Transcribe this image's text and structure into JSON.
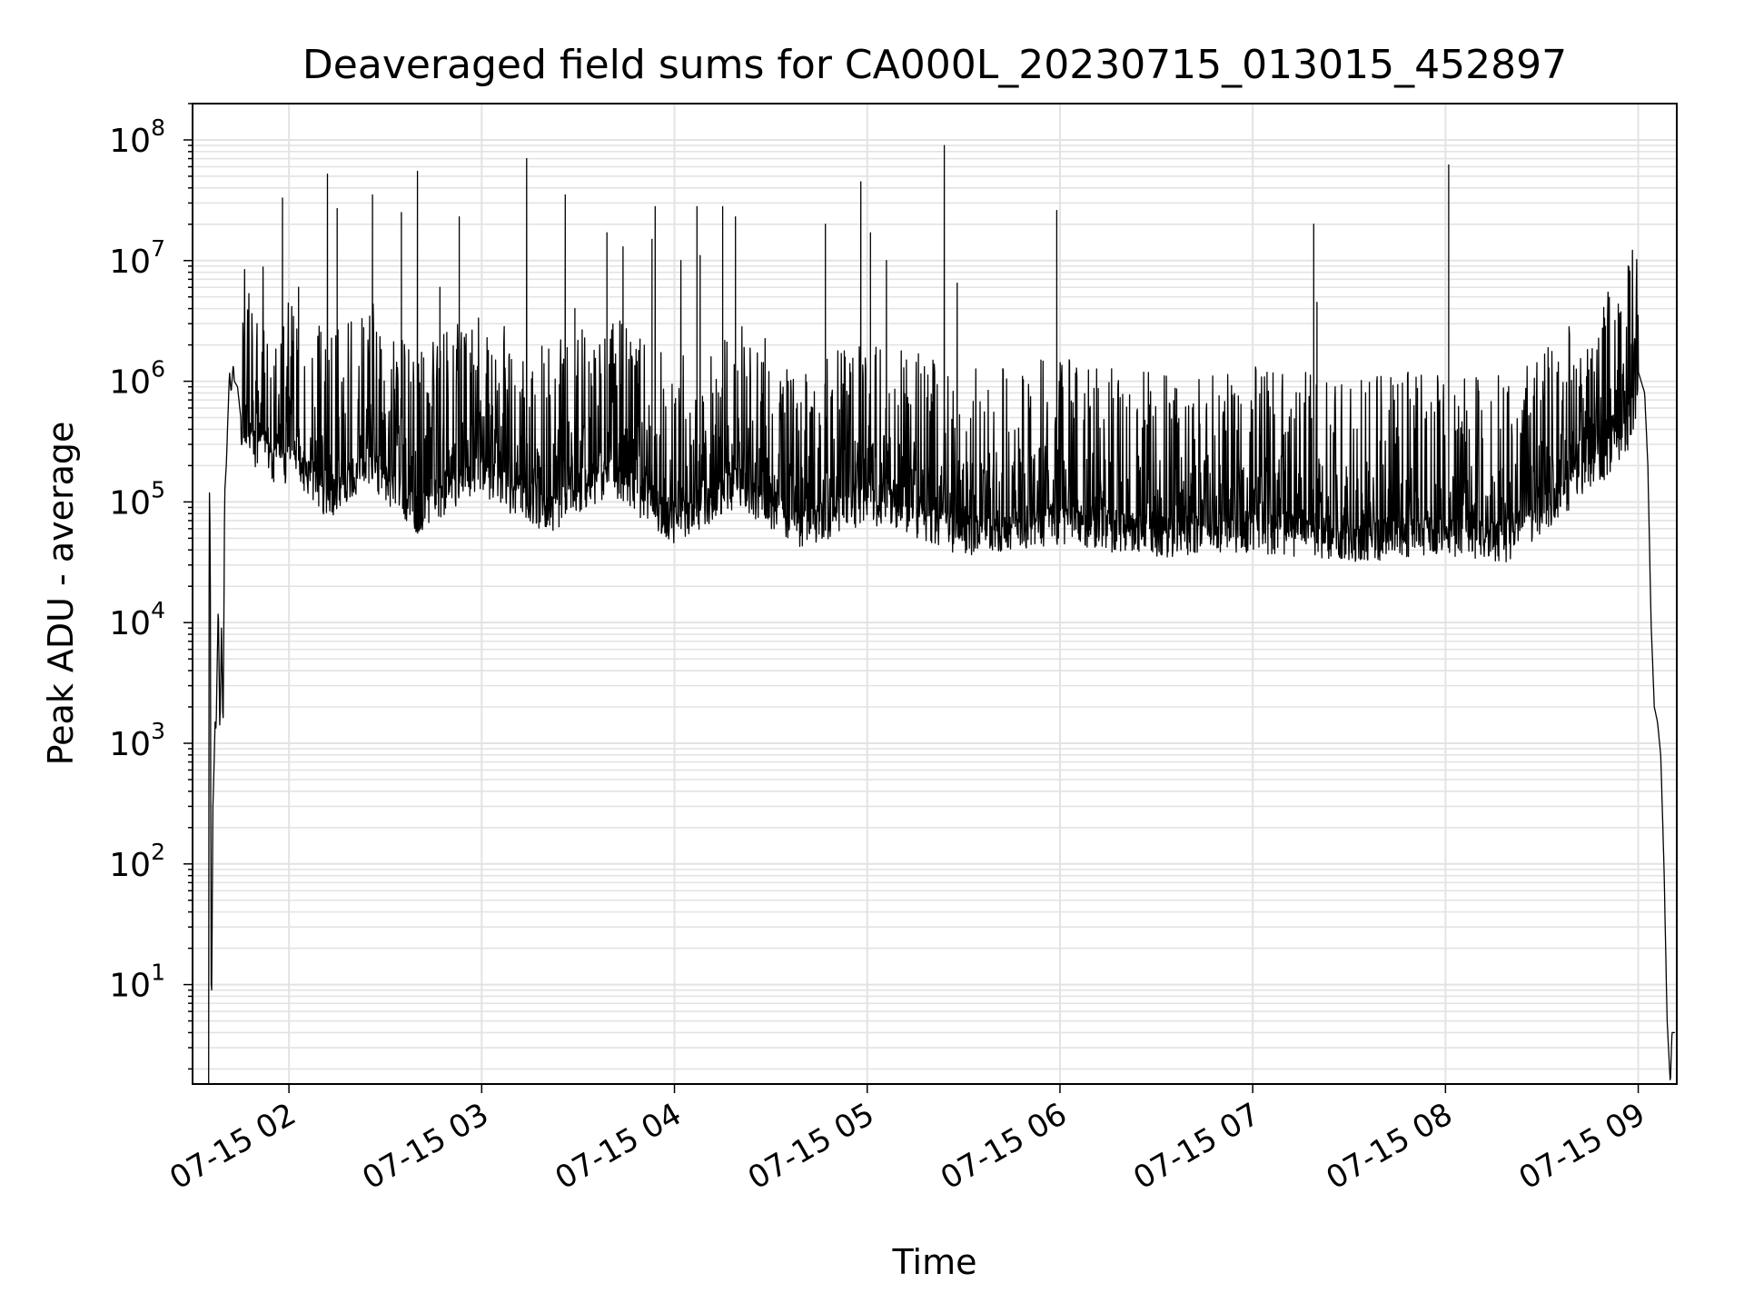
{
  "chart_data": {
    "type": "line",
    "title": "Deaveraged field sums for CA000L_20230715_013015_452897",
    "xlabel": "Time",
    "ylabel": "Peak ADU - average",
    "xlim": [
      "2023-07-15 01:30",
      "2023-07-15 09:12"
    ],
    "ylim": [
      1.5,
      200000000
    ],
    "yscale": "log",
    "grid": "on (major and minor)",
    "x_tick_labels": [
      "07-15 02",
      "07-15 03",
      "07-15 04",
      "07-15 05",
      "07-15 06",
      "07-15 07",
      "07-15 08",
      "07-15 09"
    ],
    "x_tick_times": [
      "2023-07-15 02:00",
      "2023-07-15 03:00",
      "2023-07-15 04:00",
      "2023-07-15 05:00",
      "2023-07-15 06:00",
      "2023-07-15 07:00",
      "2023-07-15 08:00",
      "2023-07-15 09:00"
    ],
    "y_tick_labels": [
      {
        "base": "10",
        "exp": "1"
      },
      {
        "base": "10",
        "exp": "2"
      },
      {
        "base": "10",
        "exp": "3"
      },
      {
        "base": "10",
        "exp": "4"
      },
      {
        "base": "10",
        "exp": "5"
      },
      {
        "base": "10",
        "exp": "6"
      },
      {
        "base": "10",
        "exp": "7"
      },
      {
        "base": "10",
        "exp": "8"
      }
    ],
    "series": [
      {
        "color": "#000000",
        "x": [
          "2023-07-15 01:35:00",
          "2023-07-15 01:35:10",
          "2023-07-15 01:35:30",
          "2023-07-15 01:35:50",
          "2023-07-15 01:36:10",
          "2023-07-15 01:36:20",
          "2023-07-15 01:36:40",
          "2023-07-15 01:37:00",
          "2023-07-15 01:37:20",
          "2023-07-15 01:38:00",
          "2023-07-15 01:38:30",
          "2023-07-15 01:39:00",
          "2023-07-15 01:39:30",
          "2023-07-15 01:40:00",
          "2023-07-15 01:40:30",
          "2023-07-15 01:41:00",
          "2023-07-15 01:41:30",
          "2023-07-15 01:42:00",
          "2023-07-15 01:42:40",
          "2023-07-15 01:43:00",
          "2023-07-15 01:44:00",
          "2023-07-15 01:45:00",
          "2023-07-15 01:47:00",
          "2023-07-15 01:49:00",
          "2023-07-15 01:52:00",
          "2023-07-15 01:55:00",
          "2023-07-15 01:58:00",
          "2023-07-15 01:59:00",
          "2023-07-15 02:00:00",
          "2023-07-15 02:12:00",
          "2023-07-15 02:25:00",
          "2023-07-15 02:40:00",
          "2023-07-15 03:00:00",
          "2023-07-15 03:20:00",
          "2023-07-15 03:40:00",
          "2023-07-15 04:00:00",
          "2023-07-15 04:20:00",
          "2023-07-15 04:40:00",
          "2023-07-15 05:00:00",
          "2023-07-15 05:30:00",
          "2023-07-15 06:00:00",
          "2023-07-15 06:30:00",
          "2023-07-15 07:00:00",
          "2023-07-15 07:30:00",
          "2023-07-15 08:00:00",
          "2023-07-15 08:20:00",
          "2023-07-15 08:30:00",
          "2023-07-15 08:40:00",
          "2023-07-15 08:50:00",
          "2023-07-15 08:57:00",
          "2023-07-15 09:00:00",
          "2023-07-15 09:02:00",
          "2023-07-15 09:03:00",
          "2023-07-15 09:04:00",
          "2023-07-15 09:05:00",
          "2023-07-15 09:06:00",
          "2023-07-15 09:07:00",
          "2023-07-15 09:08:00",
          "2023-07-15 09:09:00",
          "2023-07-15 09:10:00",
          "2023-07-15 09:10:30",
          "2023-07-15 09:11:00",
          "2023-07-15 09:11:30"
        ],
        "y": [
          1.5,
          180000,
          45000,
          4,
          60,
          300,
          600,
          1500,
          1300,
          15000,
          1200,
          9000,
          1200,
          120000,
          200000,
          500000,
          1200000,
          800000,
          1400000,
          1000000,
          900000,
          500000,
          700000,
          400000,
          600000,
          300000,
          500000,
          200000,
          400000,
          150000,
          300000,
          120000,
          250000,
          120000,
          250000,
          100000,
          200000,
          90000,
          150000,
          80000,
          100000,
          75000,
          85000,
          70000,
          80000,
          70000,
          120000,
          200000,
          350000,
          600000,
          1200000,
          800000,
          200000,
          10000,
          2000,
          1500,
          800,
          100,
          5,
          1.5,
          4,
          4,
          4
        ],
        "spikes": [
          {
            "x": "2023-07-15 01:58:00",
            "y": 33000000
          },
          {
            "x": "2023-07-15 02:03:00",
            "y": 6000000
          },
          {
            "x": "2023-07-15 02:12:00",
            "y": 52000000
          },
          {
            "x": "2023-07-15 02:15:00",
            "y": 27000000
          },
          {
            "x": "2023-07-15 02:26:00",
            "y": 35000000
          },
          {
            "x": "2023-07-15 02:35:00",
            "y": 25000000
          },
          {
            "x": "2023-07-15 02:40:00",
            "y": 55000000
          },
          {
            "x": "2023-07-15 02:47:00",
            "y": 6000000
          },
          {
            "x": "2023-07-15 02:53:00",
            "y": 23000000
          },
          {
            "x": "2023-07-15 03:14:00",
            "y": 70000000
          },
          {
            "x": "2023-07-15 03:26:00",
            "y": 35000000
          },
          {
            "x": "2023-07-15 03:29:00",
            "y": 4000000
          },
          {
            "x": "2023-07-15 03:39:00",
            "y": 17000000
          },
          {
            "x": "2023-07-15 03:44:00",
            "y": 13000000
          },
          {
            "x": "2023-07-15 03:53:00",
            "y": 15000000
          },
          {
            "x": "2023-07-15 03:54:00",
            "y": 28000000
          },
          {
            "x": "2023-07-15 04:02:00",
            "y": 10000000
          },
          {
            "x": "2023-07-15 04:07:00",
            "y": 28000000
          },
          {
            "x": "2023-07-15 04:08:00",
            "y": 11000000
          },
          {
            "x": "2023-07-15 04:15:00",
            "y": 28000000
          },
          {
            "x": "2023-07-15 04:19:00",
            "y": 23000000
          },
          {
            "x": "2023-07-15 04:47:00",
            "y": 20000000
          },
          {
            "x": "2023-07-15 04:58:00",
            "y": 45000000
          },
          {
            "x": "2023-07-15 05:01:00",
            "y": 17000000
          },
          {
            "x": "2023-07-15 05:06:00",
            "y": 10000000
          },
          {
            "x": "2023-07-15 05:24:00",
            "y": 90000000
          },
          {
            "x": "2023-07-15 05:28:00",
            "y": 6500000
          },
          {
            "x": "2023-07-15 05:59:00",
            "y": 26000000
          },
          {
            "x": "2023-07-15 07:19:00",
            "y": 20000000
          },
          {
            "x": "2023-07-15 07:20:00",
            "y": 4500000
          },
          {
            "x": "2023-07-15 08:01:00",
            "y": 62000000
          }
        ]
      }
    ]
  }
}
